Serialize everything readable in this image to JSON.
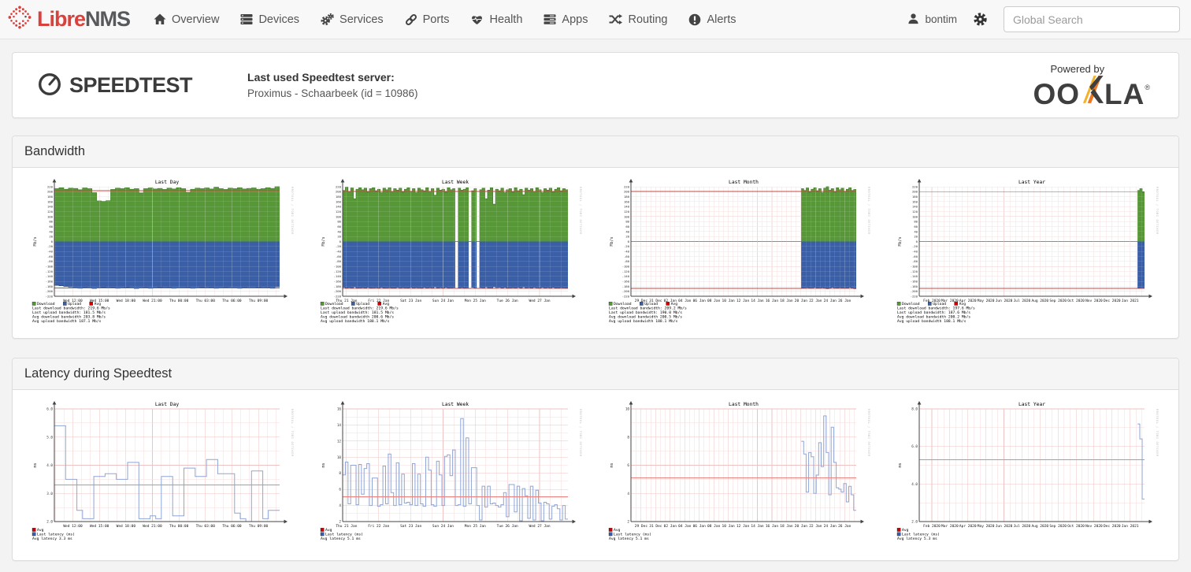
{
  "navbar": {
    "brand_libre": "Libre",
    "brand_nms": "NMS",
    "items": [
      {
        "label": "Overview",
        "icon": "home-icon"
      },
      {
        "label": "Devices",
        "icon": "devices-icon"
      },
      {
        "label": "Services",
        "icon": "gears-icon"
      },
      {
        "label": "Ports",
        "icon": "link-icon"
      },
      {
        "label": "Health",
        "icon": "heartbeat-icon"
      },
      {
        "label": "Apps",
        "icon": "apps-icon"
      },
      {
        "label": "Routing",
        "icon": "shuffle-icon"
      },
      {
        "label": "Alerts",
        "icon": "alert-icon"
      }
    ],
    "user": "bontim",
    "search_placeholder": "Global Search"
  },
  "speedtest": {
    "logo_text": "SPEEDTEST",
    "last_used_label": "Last used Speedtest server:",
    "server": "Proximus - Schaarbeek (id = 10986)",
    "powered_by": "Powered by",
    "ookla": {
      "left": "OO",
      "right": "LA",
      "reg": "®"
    }
  },
  "panels": {
    "bandwidth_title": "Bandwidth",
    "latency_title": "Latency during Speedtest"
  },
  "colors": {
    "download_fill": "#579738",
    "download_edge": "#3f7d27",
    "upload_fill": "#3b5fa7",
    "upload_edge": "#27437e",
    "avg_line": "#c84a44",
    "latency_line": "#8fa5d6",
    "latency_avg": "#e8837f",
    "grid_minor": "#f6dbdb",
    "grid_major": "#eec3c3",
    "zero_line": "#8c8c8c",
    "axis": "#444444",
    "watermark": "#c0c0c0"
  },
  "watermark": "RRDTOOL / TOBI OETIKER",
  "chart_data": [
    {
      "kind": "bandwidth",
      "type": "area",
      "title": "Last Day",
      "ylabel": "Mb/s",
      "ylim": [
        -220,
        220
      ],
      "y_step": 20,
      "x_labels": [
        "Wed 12:00",
        "Wed 15:00",
        "Wed 18:00",
        "Wed 21:00",
        "Thu 00:00",
        "Thu 03:00",
        "Thu 06:00",
        "Thu 09:00"
      ],
      "x_align": "center",
      "series": {
        "download": [
          212,
          216,
          210,
          214,
          213,
          208,
          215,
          212,
          196,
          163,
          161,
          164,
          209,
          214,
          212,
          216,
          210,
          212,
          195,
          212,
          215,
          211,
          213,
          209,
          214,
          211,
          216,
          212,
          197,
          210,
          214,
          212,
          215,
          211,
          218,
          212,
          209,
          214,
          212,
          216,
          211,
          213,
          215,
          210,
          212,
          216,
          213,
          220
        ],
        "upload": [
          176,
          178,
          181,
          183,
          186,
          188,
          185,
          187,
          189,
          186,
          184,
          187,
          185,
          188,
          186,
          184,
          187,
          189,
          186,
          185,
          188,
          186,
          184,
          187,
          185,
          188,
          186,
          187,
          185,
          188,
          186,
          184,
          187,
          185,
          188,
          186,
          185,
          187,
          186,
          188,
          185,
          187,
          186,
          184,
          187,
          185,
          188,
          182
        ]
      },
      "avg": {
        "download": 203.8,
        "upload": 187.1
      },
      "legend": {
        "swatches": [
          {
            "label": "Download",
            "color": "#579738"
          },
          {
            "label": "Upload",
            "color": "#3b5fa7"
          },
          {
            "label": "Avg",
            "color": "#cc0000"
          }
        ],
        "lines": [
          "Last download bandwidth: 219.6 Mb/s",
          "Last upload bandwidth: 181.5 Mb/s",
          "Avg download bandwidth 203.8 Mb/s",
          "Avg upload bandwidth 187.1 Mb/s"
        ]
      }
    },
    {
      "kind": "bandwidth",
      "type": "area",
      "title": "Last Week",
      "ylabel": "Mb/s",
      "ylim": [
        -220,
        220
      ],
      "y_step": 20,
      "x_labels": [
        "Thu 21 Jan",
        "Fri 22 Jan",
        "Sat 23 Jan",
        "Sun 24 Jan",
        "Mon 25 Jan",
        "Tue 26 Jan",
        "Wed 27 Jan"
      ],
      "x_align": "edge",
      "series": {
        "download": [
          205,
          218,
          200,
          215,
          172,
          210,
          216,
          208,
          214,
          198,
          212,
          216,
          204,
          210,
          196,
          214,
          208,
          216,
          200,
          212,
          206,
          214,
          198,
          210,
          216,
          202,
          212,
          196,
          214,
          208,
          204,
          216,
          200,
          212,
          186,
          214,
          206,
          210,
          198,
          216,
          208,
          212,
          null,
          214,
          206,
          210,
          216,
          null,
          204,
          212,
          null,
          208,
          214,
          172,
          206,
          216,
          150,
          210,
          204,
          214,
          196,
          208,
          212,
          198,
          216,
          204,
          210,
          188,
          214,
          206,
          212,
          200,
          216,
          208,
          196,
          212,
          206,
          214,
          198,
          210,
          216,
          204,
          212,
          208
        ],
        "upload": [
          184,
          187,
          185,
          188,
          183,
          186,
          188,
          185,
          187,
          184,
          186,
          188,
          185,
          187,
          184,
          186,
          188,
          185,
          187,
          186,
          184,
          187,
          185,
          188,
          186,
          184,
          187,
          185,
          188,
          186,
          184,
          187,
          185,
          188,
          183,
          186,
          185,
          187,
          184,
          186,
          188,
          185,
          null,
          187,
          185,
          186,
          188,
          null,
          184,
          187,
          null,
          185,
          188,
          183,
          186,
          187,
          182,
          185,
          184,
          187,
          184,
          186,
          188,
          185,
          187,
          184,
          186,
          183,
          187,
          185,
          186,
          184,
          188,
          186,
          184,
          187,
          185,
          188,
          184,
          186,
          187,
          185,
          188,
          186
        ]
      },
      "avg": {
        "download": 200.6,
        "upload": 188.1
      },
      "legend": {
        "swatches": [
          {
            "label": "Download",
            "color": "#579738"
          },
          {
            "label": "Upload",
            "color": "#3b5fa7"
          },
          {
            "label": "Avg",
            "color": "#cc0000"
          }
        ],
        "lines": [
          "Last download bandwidth: 219.6 Mb/s",
          "Last upload bandwidth: 181.5 Mb/s",
          "Avg download bandwidth 200.6 Mb/s",
          "Avg upload bandwidth 188.1 Mb/s"
        ]
      }
    },
    {
      "kind": "bandwidth",
      "type": "area",
      "title": "Last Month",
      "ylabel": "Mb/s",
      "ylim": [
        -220,
        220
      ],
      "y_step": 20,
      "x_labels": [
        "29 Dec",
        "31 Dec",
        "02 Jan",
        "04 Jan",
        "06 Jan",
        "08 Jan",
        "10 Jan",
        "12 Jan",
        "14 Jan",
        "16 Jan",
        "18 Jan",
        "20 Jan",
        "22 Jan",
        "24 Jan",
        "26 Jan"
      ],
      "x_align": "center",
      "series": {
        "download": {
          "nulls": 68,
          "values": [
            212,
            205,
            215,
            198,
            210,
            216,
            204,
            212,
            196,
            214,
            220,
            206,
            212,
            198,
            216,
            208,
            214,
            202,
            210,
            216,
            205,
            209
          ]
        },
        "upload": {
          "nulls": 68,
          "values": [
            186,
            188,
            185,
            187,
            189,
            184,
            186,
            188,
            185,
            187,
            190,
            186,
            184,
            188,
            186,
            185,
            187,
            189,
            186,
            184,
            188,
            190
          ]
        }
      },
      "avg": {
        "download": 200.5,
        "upload": 188.1
      },
      "legend": {
        "swatches": [
          {
            "label": "Download",
            "color": "#579738"
          },
          {
            "label": "Upload",
            "color": "#3b5fa7"
          },
          {
            "label": "Avg",
            "color": "#cc0000"
          }
        ],
        "lines": [
          "Last download bandwidth: 209.2 Mb/s",
          "Last upload bandwidth: 190.0 Mb/s",
          "Avg download bandwidth 200.5 Mb/s",
          "Avg upload bandwidth 188.1 Mb/s"
        ]
      }
    },
    {
      "kind": "bandwidth",
      "type": "area",
      "title": "Last Year",
      "ylabel": "Mb/s",
      "ylim": [
        -220,
        220
      ],
      "y_step": 20,
      "x_labels": [
        "Feb 2020",
        "Mar 2020",
        "Apr 2020",
        "May 2020",
        "Jun 2020",
        "Jul 2020",
        "Aug 2020",
        "Sep 2020",
        "Oct 2020",
        "Nov 2020",
        "Dec 2020",
        "Jan 2021"
      ],
      "x_align": "center",
      "series": {
        "download": {
          "nulls": 93,
          "values": [
            205,
            212,
            198
          ]
        },
        "upload": {
          "nulls": 93,
          "values": [
            186,
            188,
            188
          ]
        }
      },
      "avg": {
        "download": 200.2,
        "upload": 188.1
      },
      "legend": {
        "swatches": [
          {
            "label": "Download",
            "color": "#579738"
          },
          {
            "label": "Upload",
            "color": "#3b5fa7"
          },
          {
            "label": "Avg",
            "color": "#cc0000"
          }
        ],
        "lines": [
          "Last download bandwidth: 197.6 Mb/s",
          "Last upload bandwidth: 187.6 Mb/s",
          "Avg download bandwidth 200.2 Mb/s",
          "Avg upload bandwidth 188.1 Mb/s"
        ]
      }
    },
    {
      "kind": "latency",
      "type": "line",
      "title": "Last Day",
      "ylabel": "ms",
      "ylim": [
        2,
        6
      ],
      "y_ticks": [
        6,
        5,
        4,
        3,
        2
      ],
      "y_fmt": "1dp",
      "x_labels": [
        "Wed 12:00",
        "Wed 15:00",
        "Wed 18:00",
        "Wed 21:00",
        "Thu 00:00",
        "Thu 03:00",
        "Thu 06:00",
        "Thu 09:00"
      ],
      "x_align": "center",
      "series": {
        "latency": [
          5.4,
          5.4,
          3.5,
          3.5,
          2.4,
          2.1,
          2.1,
          3.6,
          3.6,
          3.7,
          3.7,
          3.5,
          3.5,
          4.1,
          4.1,
          2.1,
          2.1,
          2.2,
          2.1,
          3.6,
          3.6,
          2.2,
          2.2,
          3.9,
          3.9,
          3.6,
          3.6,
          4.2,
          4.2,
          3.7,
          3.7,
          3.7,
          2.3,
          2.1,
          2.0,
          3.8,
          3.8,
          2.1,
          2.4,
          2.4
        ]
      },
      "avg": {
        "latency": 3.3
      },
      "legend": {
        "swatch_lines": [
          {
            "label": "Avg",
            "color": "#cc0000"
          },
          {
            "label": "Last latency (ms)",
            "color": "#3b5fa7"
          }
        ],
        "lines": [
          "Avg latency 3.3 ms"
        ]
      }
    },
    {
      "kind": "latency",
      "type": "line",
      "title": "Last Week",
      "ylabel": "ms",
      "ylim": [
        2,
        16
      ],
      "y_ticks": [
        16,
        14,
        12,
        10,
        8,
        6,
        4,
        2
      ],
      "y_fmt": "int",
      "x_labels": [
        "Thu 21 Jan",
        "Fri 22 Jan",
        "Sat 23 Jan",
        "Sun 24 Jan",
        "Mon 25 Jan",
        "Tue 26 Jan",
        "Wed 27 Jan"
      ],
      "x_align": "edge",
      "series": {
        "latency": [
          7.8,
          9.4,
          4.2,
          9.0,
          9.0,
          4.1,
          9.1,
          5.4,
          8.6,
          9.2,
          4.0,
          7.4,
          7.4,
          3.9,
          4.1,
          8.9,
          4.2,
          10.4,
          5.6,
          4.0,
          9.3,
          4.1,
          7.9,
          4.3,
          4.4,
          4.1,
          9.2,
          4.0,
          7.9,
          4.2,
          3.9,
          10.0,
          8.4,
          4.1,
          3.9,
          9.5,
          7.8,
          4.0,
          10.1,
          10.3,
          7.7,
          10.9,
          4.0,
          4.1,
          14.8,
          3.9,
          12.4,
          4.2,
          8.7,
          8.7,
          4.0,
          2.2,
          6.4,
          3.8,
          6.4,
          4.2,
          4.3,
          4.0,
          3.8,
          4.1,
          5.6,
          2.6,
          6.6,
          6.6,
          3.2,
          6.4,
          2.1,
          6.1,
          5.2,
          2.4,
          6.4,
          2.2,
          5.9,
          4.3,
          2.1,
          4.4,
          4.2,
          2.3,
          3.9,
          4.1,
          3.6,
          2.2,
          4.0,
          2.3
        ]
      },
      "avg": {
        "latency": 5.1
      },
      "legend": {
        "swatch_lines": [
          {
            "label": "Avg",
            "color": "#cc0000"
          },
          {
            "label": "Last latency (ms)",
            "color": "#3b5fa7"
          }
        ],
        "lines": [
          "Avg latency 5.1 ms"
        ]
      }
    },
    {
      "kind": "latency",
      "type": "line",
      "title": "Last Month",
      "ylabel": "ms",
      "ylim": [
        2,
        10
      ],
      "y_ticks": [
        10,
        8,
        6,
        4,
        2
      ],
      "y_fmt": "int",
      "x_labels": [
        "29 Dec",
        "31 Dec",
        "02 Jan",
        "04 Jan",
        "06 Jan",
        "08 Jan",
        "10 Jan",
        "12 Jan",
        "14 Jan",
        "16 Jan",
        "18 Jan",
        "20 Jan",
        "22 Jan",
        "24 Jan",
        "26 Jan"
      ],
      "x_align": "center",
      "series": {
        "latency": {
          "nulls": 68,
          "values": [
            7.7,
            6.8,
            4.1,
            6.9,
            6.6,
            4.0,
            5.3,
            7.6,
            5.9,
            9.5,
            6.9,
            3.9,
            8.7,
            6.2,
            4.4,
            4.3,
            4.1,
            4.7,
            3.4,
            4.5,
            3.9,
            2.8
          ]
        }
      },
      "avg": {
        "latency": 5.1
      },
      "legend": {
        "swatch_lines": [
          {
            "label": "Avg",
            "color": "#cc0000"
          },
          {
            "label": "Last latency (ms)",
            "color": "#3b5fa7"
          }
        ],
        "lines": [
          "Avg latency 5.1 ms"
        ]
      }
    },
    {
      "kind": "latency",
      "type": "line",
      "title": "Last Year",
      "ylabel": "ms",
      "ylim": [
        2,
        8
      ],
      "y_ticks": [
        8,
        6,
        4,
        2
      ],
      "y_fmt": "1dp",
      "x_labels": [
        "Feb 2020",
        "Mar 2020",
        "Apr 2020",
        "May 2020",
        "Jun 2020",
        "Jul 2020",
        "Aug 2020",
        "Sep 2020",
        "Oct 2020",
        "Nov 2020",
        "Dec 2020",
        "Jan 2021"
      ],
      "x_align": "center",
      "series": {
        "latency": {
          "nulls": 93,
          "values": [
            7.2,
            6.4,
            3.2
          ]
        }
      },
      "avg": {
        "latency": 5.3
      },
      "legend": {
        "swatch_lines": [
          {
            "label": "Avg",
            "color": "#cc0000"
          },
          {
            "label": "Last latency (ms)",
            "color": "#3b5fa7"
          }
        ],
        "lines": [
          "Avg latency 5.3 ms"
        ]
      }
    }
  ]
}
